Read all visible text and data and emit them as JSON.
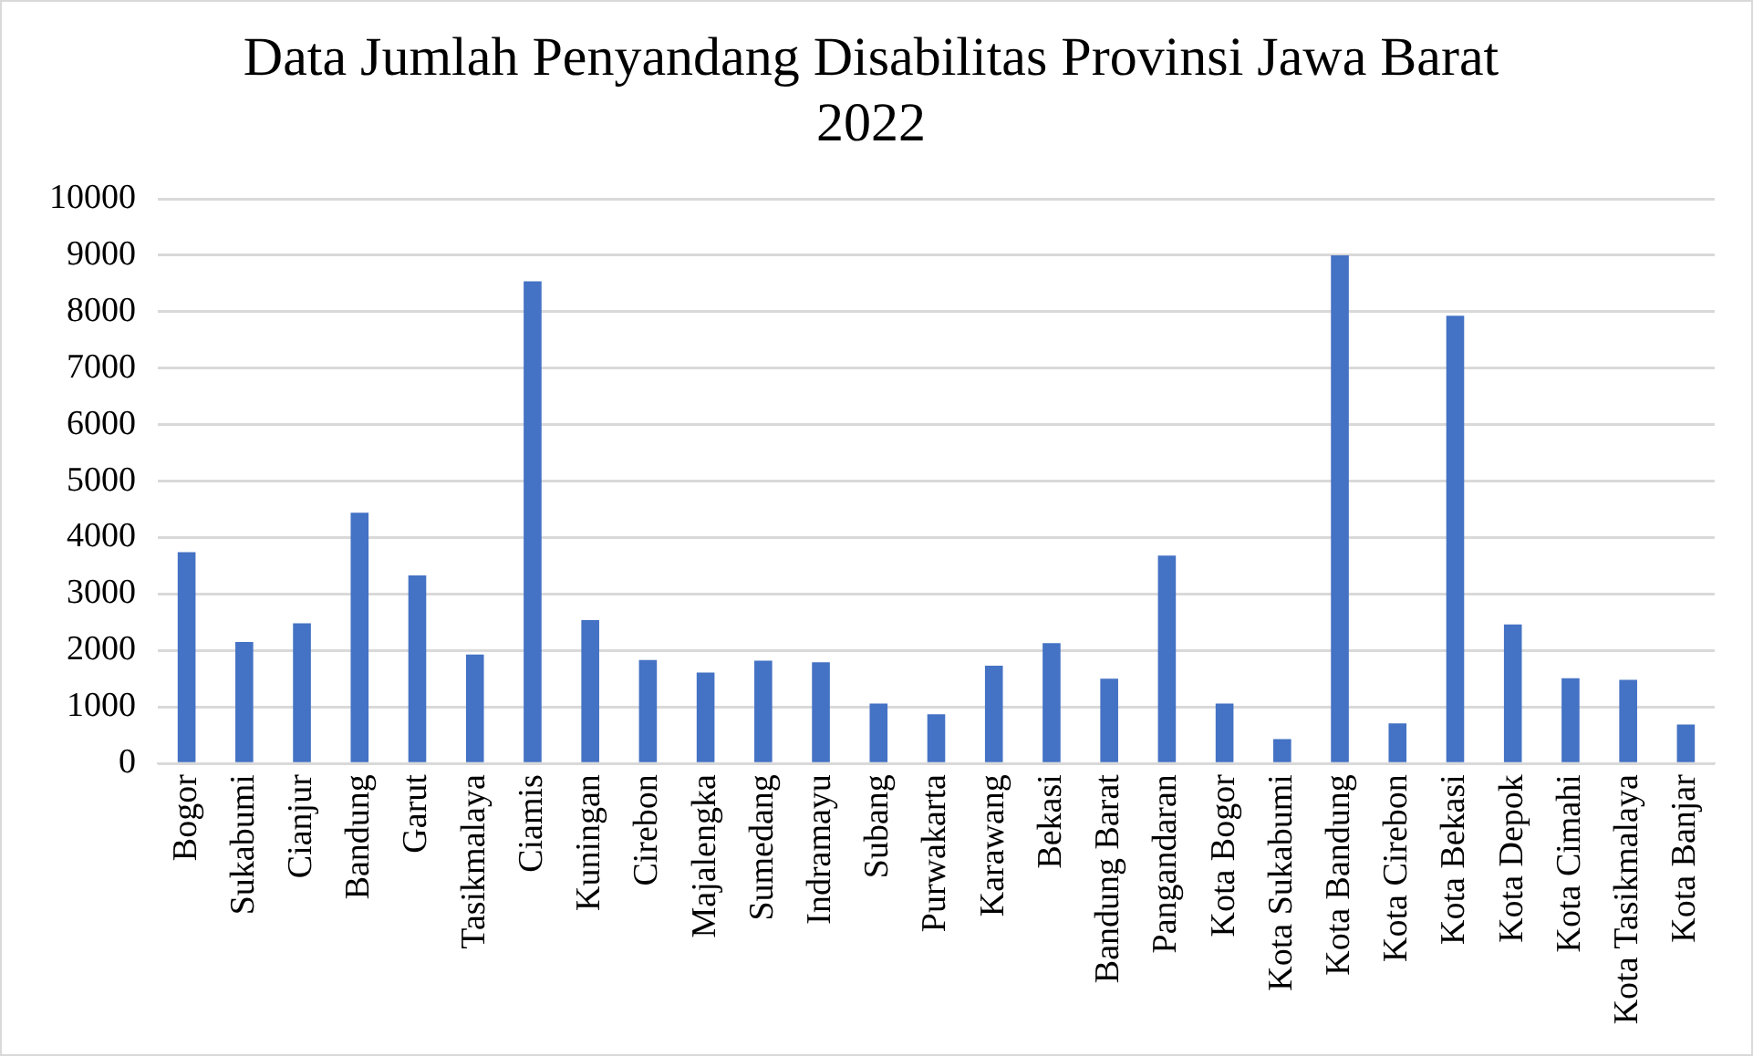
{
  "chart_data": {
    "type": "bar",
    "title": "Data Jumlah Penyandang Disabilitas Provinsi Jawa Barat 2022",
    "categories": [
      "Bogor",
      "Sukabumi",
      "Cianjur",
      "Bandung",
      "Garut",
      "Tasikmalaya",
      "Ciamis",
      "Kuningan",
      "Cirebon",
      "Majalengka",
      "Sumedang",
      "Indramayu",
      "Subang",
      "Purwakarta",
      "Karawang",
      "Bekasi",
      "Bandung Barat",
      "Pangandaran",
      "Kota Bogor",
      "Kota Sukabumi",
      "Kota Bandung",
      "Kota Cirebon",
      "Kota Bekasi",
      "Kota Depok",
      "Kota Cimahi",
      "Kota Tasikmalaya",
      "Kota Banjar"
    ],
    "values": [
      3740,
      2150,
      2480,
      4440,
      3330,
      1930,
      8540,
      2540,
      1830,
      1610,
      1820,
      1790,
      1060,
      870,
      1730,
      2130,
      1500,
      3680,
      1060,
      430,
      9000,
      710,
      7930,
      2460,
      1510,
      1480,
      690
    ],
    "color": "#4472c4",
    "ylim": [
      0,
      10000
    ],
    "yticks": [
      0,
      1000,
      2000,
      3000,
      4000,
      5000,
      6000,
      7000,
      8000,
      9000,
      10000
    ],
    "grid": "y"
  }
}
